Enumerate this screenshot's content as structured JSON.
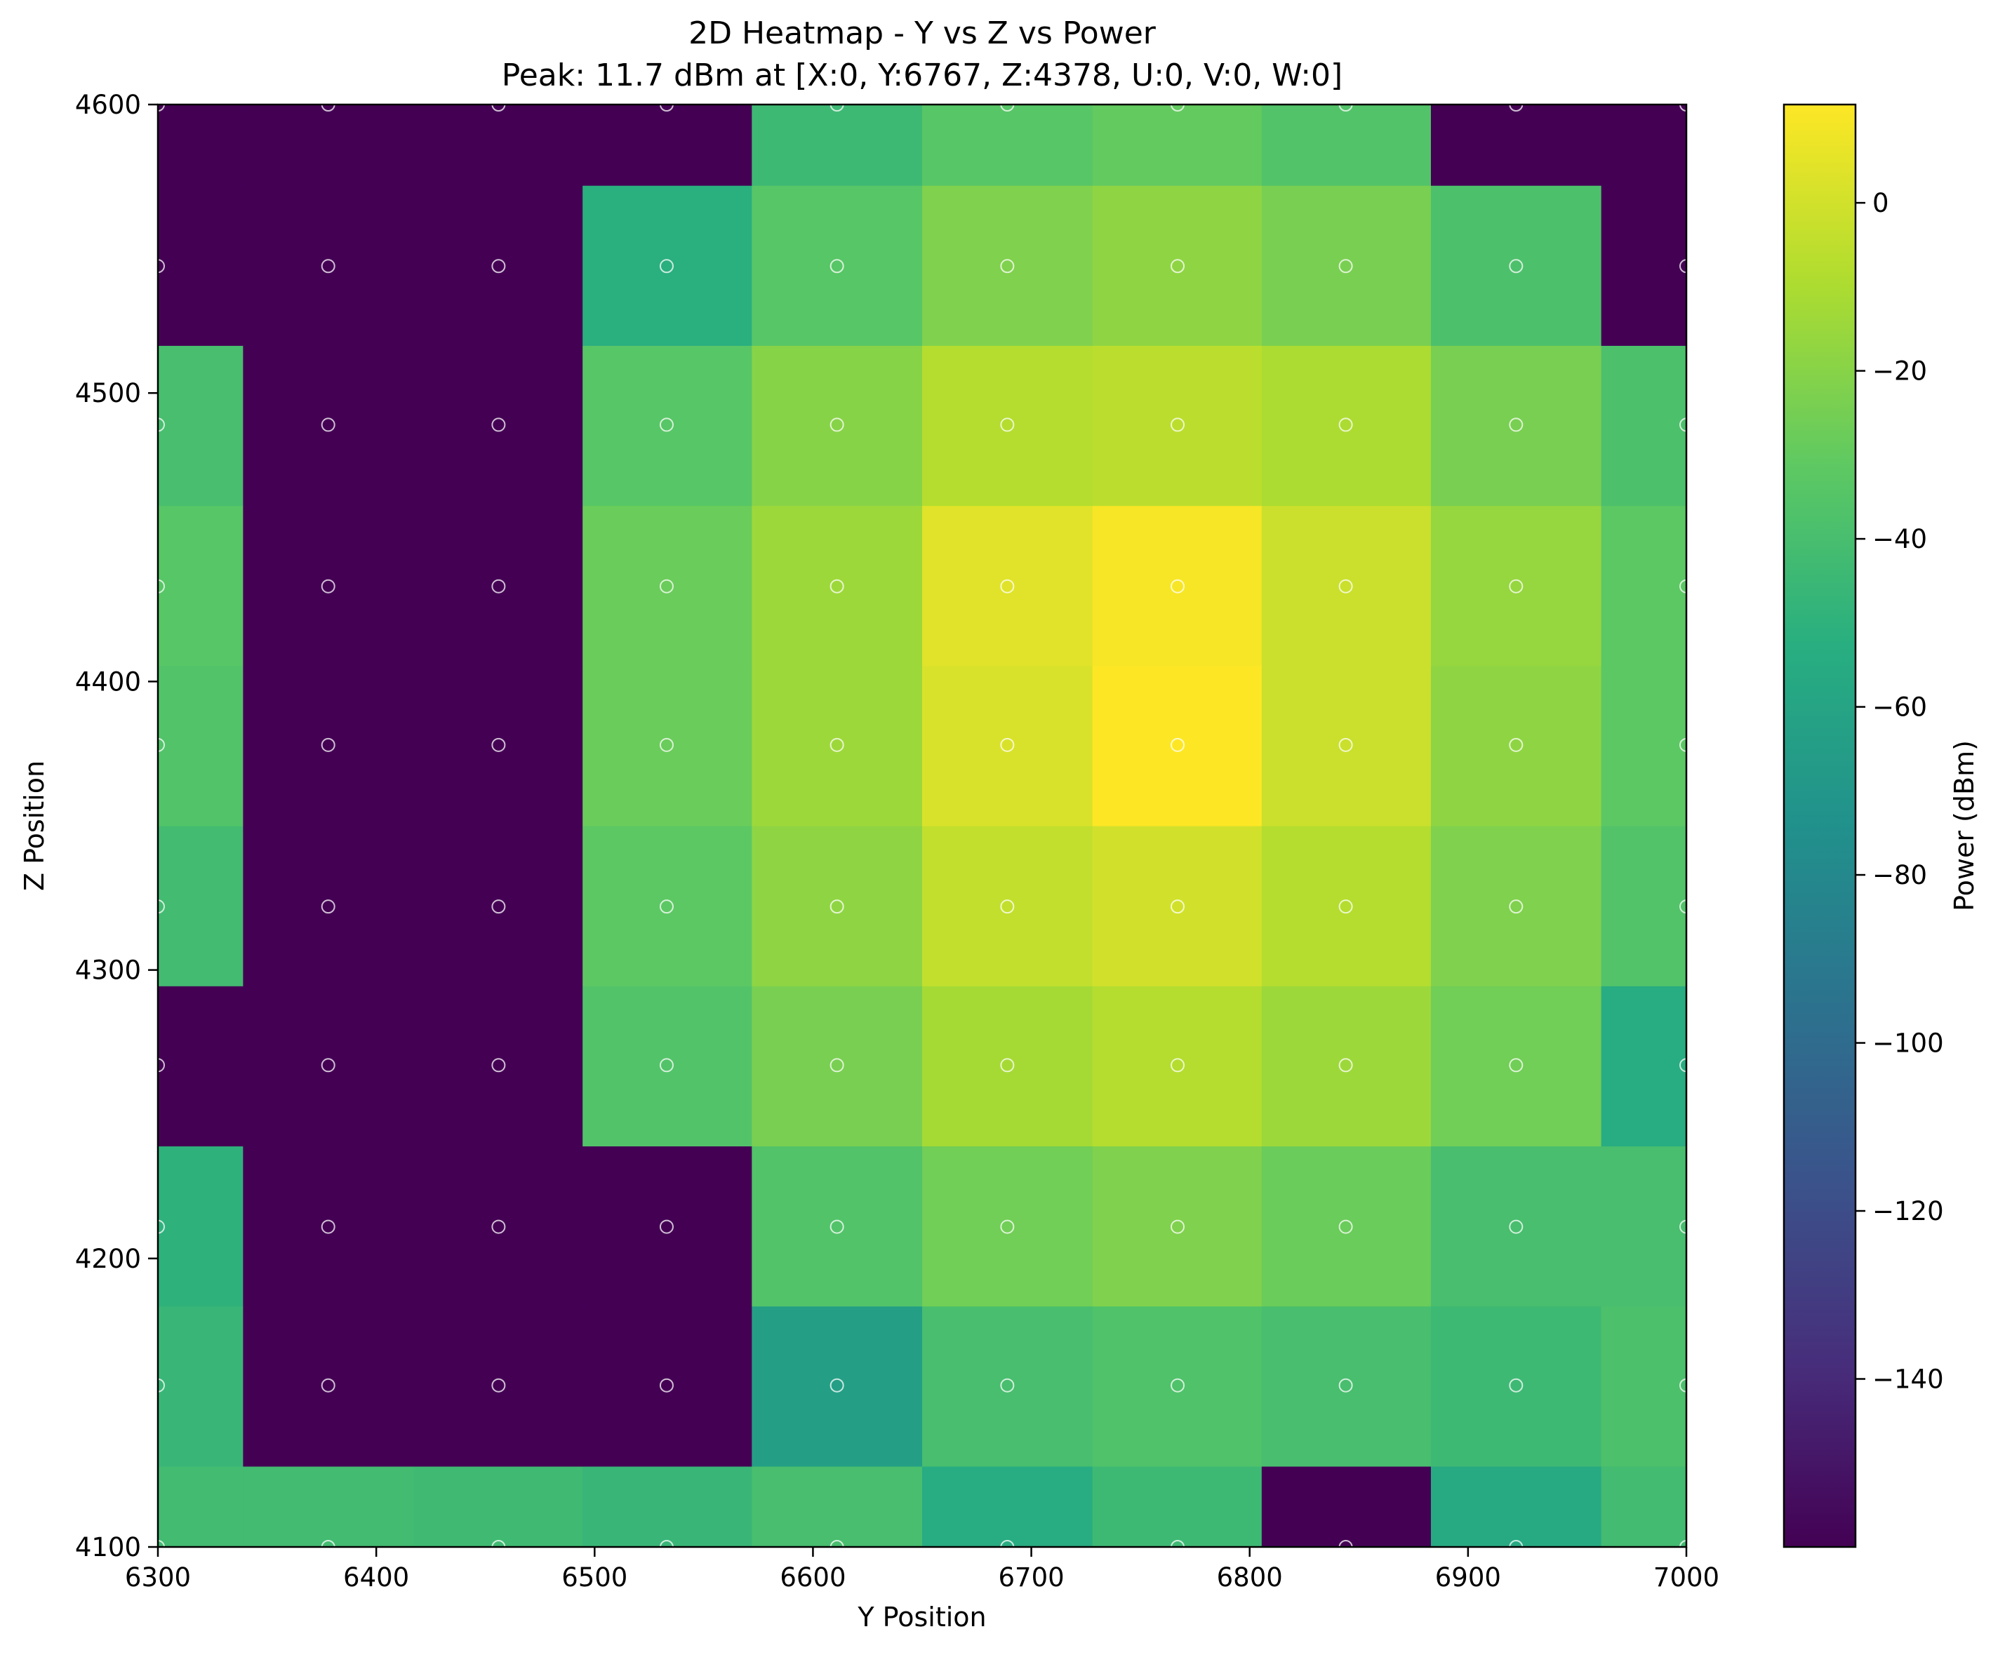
{
  "chart_data": {
    "type": "heatmap",
    "title": "2D Heatmap - Y vs Z vs Power",
    "subtitle": "Peak: 11.7 dBm at [X:0, Y:6767, Z:4378, U:0, V:0, W:0]",
    "xlabel": "Y Position",
    "ylabel": "Z Position",
    "colorbar_label": "Power (dBm)",
    "colormap": "viridis",
    "xlim": [
      6300,
      7000
    ],
    "ylim": [
      4100,
      4600
    ],
    "color_range": [
      -160,
      11.7
    ],
    "x_ticks": [
      "6300",
      "6400",
      "6500",
      "6600",
      "6700",
      "6800",
      "6900",
      "7000"
    ],
    "y_ticks": [
      "4100",
      "4200",
      "4300",
      "4400",
      "4500",
      "4600"
    ],
    "colorbar_ticks": [
      "0",
      "−20",
      "−40",
      "−60",
      "−80",
      "−100",
      "−120",
      "−140"
    ],
    "x_centers": [
      6300,
      6378,
      6456,
      6533,
      6611,
      6689,
      6767,
      6844,
      6922,
      7000
    ],
    "y_centers": [
      4100,
      4156,
      4211,
      4267,
      4322,
      4378,
      4433,
      4489,
      4544,
      4600
    ],
    "values": [
      [
        -42,
        -42,
        -43,
        -46,
        -40,
        -54,
        -44,
        -160,
        -56,
        -42
      ],
      [
        -46,
        -160,
        -160,
        -160,
        -64,
        -40,
        -37,
        -40,
        -44,
        -38
      ],
      [
        -50,
        -160,
        -160,
        -160,
        -36,
        -26,
        -22,
        -28,
        -40,
        -40
      ],
      [
        -160,
        -160,
        -160,
        -36,
        -24,
        -12,
        -8,
        -14,
        -26,
        -54
      ],
      [
        -42,
        -160,
        -160,
        -32,
        -18,
        -4,
        0,
        -8,
        -22,
        -36
      ],
      [
        -36,
        -160,
        -160,
        -28,
        -14,
        2,
        11.7,
        -2,
        -18,
        -32
      ],
      [
        -34,
        -160,
        -160,
        -28,
        -14,
        4,
        10,
        -2,
        -16,
        -32
      ],
      [
        -40,
        -160,
        -160,
        -34,
        -20,
        -8,
        -6,
        -10,
        -24,
        -38
      ],
      [
        -160,
        -160,
        -160,
        -52,
        -34,
        -22,
        -18,
        -24,
        -38,
        -160
      ],
      [
        -160,
        -160,
        -160,
        -160,
        -44,
        -34,
        -30,
        -36,
        -160,
        -160
      ]
    ],
    "sample_markers": "white open circles at each grid center"
  }
}
